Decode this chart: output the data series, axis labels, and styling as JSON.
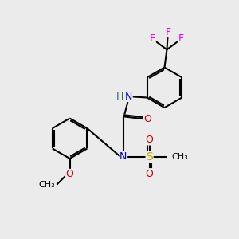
{
  "bg_color": "#ebebeb",
  "atom_colors": {
    "C": "#000000",
    "N": "#0000cc",
    "O": "#cc0000",
    "S": "#bbaa00",
    "F": "#ee00ee",
    "H": "#336666"
  },
  "bond_color": "#000000",
  "bond_width": 1.5,
  "font_size": 9
}
